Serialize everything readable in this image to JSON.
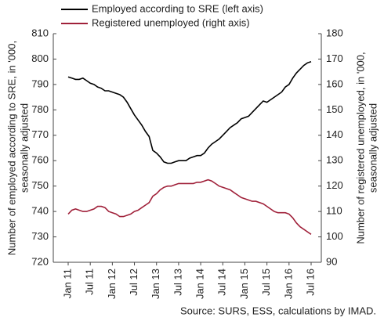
{
  "chart_data": {
    "type": "line",
    "y_label": [
      "Number of employed according to SRE, in '000,",
      "seasonally adjusted"
    ],
    "y2_label": [
      "Number of registered unemployed, in '000,",
      "seasonally adjusted"
    ],
    "source": "Source: SURS, ESS, calculations by IMAD.",
    "categories": [
      "Jan 11",
      null,
      null,
      null,
      null,
      null,
      "Jul 11",
      null,
      null,
      null,
      null,
      null,
      "Jan 12",
      null,
      null,
      null,
      null,
      null,
      "Jul 12",
      null,
      null,
      null,
      null,
      null,
      "Jan 13",
      null,
      null,
      null,
      null,
      null,
      "Jul 13",
      null,
      null,
      null,
      null,
      null,
      "Jan 14",
      null,
      null,
      null,
      null,
      null,
      "Jul 14",
      null,
      null,
      null,
      null,
      null,
      "Jan 15",
      null,
      null,
      null,
      null,
      null,
      "Jul 15",
      null,
      null,
      null,
      null,
      null,
      "Jan 16",
      null,
      null,
      null,
      null,
      null,
      "Jul 16"
    ],
    "series": [
      {
        "name": "Employed according to SRE (left axis)",
        "color": "#000000",
        "axis": "y",
        "values": [
          793,
          792.5,
          792,
          792,
          792.5,
          791.5,
          790.5,
          790,
          789,
          788.5,
          787.5,
          787.5,
          787,
          786.5,
          786,
          785,
          783,
          780.5,
          778,
          776,
          774,
          771.5,
          769.5,
          764,
          763,
          761.5,
          759.5,
          759,
          759,
          759.5,
          760,
          760,
          760,
          761,
          761.5,
          762,
          762,
          763,
          765,
          766.5,
          767.5,
          768.5,
          770,
          771.5,
          773,
          774,
          775,
          776.5,
          777,
          777.5,
          779,
          780.5,
          782,
          783.5,
          783,
          784,
          785,
          786,
          787,
          789,
          790,
          792.5,
          794.5,
          796,
          797.5,
          798.5,
          799
        ]
      },
      {
        "name": "Registered unemployed (right axis)",
        "color": "#a0213a",
        "axis": "y2",
        "values": [
          109,
          110.5,
          111,
          110.5,
          110,
          110,
          110.5,
          111,
          112,
          112,
          111.5,
          110,
          109.5,
          109,
          108,
          108,
          108.5,
          109,
          110,
          110.5,
          111.5,
          112.5,
          113.5,
          116,
          117,
          118.5,
          119.5,
          120,
          120,
          120.5,
          121,
          121,
          121,
          121,
          121,
          121.5,
          121.5,
          122,
          122.5,
          122,
          121,
          120,
          119.5,
          119,
          118.5,
          117.5,
          116.5,
          115.5,
          115,
          114.5,
          114,
          114,
          113.5,
          113,
          112,
          111,
          110,
          109.5,
          109.5,
          109.5,
          109,
          107.5,
          105.5,
          104,
          103,
          102,
          101
        ]
      }
    ],
    "ylim": [
      720,
      810
    ],
    "yticks": [
      720,
      730,
      740,
      750,
      760,
      770,
      780,
      790,
      800,
      810
    ],
    "y2lim": [
      90,
      180
    ],
    "y2ticks": [
      90,
      100,
      110,
      120,
      130,
      140,
      150,
      160,
      170,
      180
    ]
  }
}
